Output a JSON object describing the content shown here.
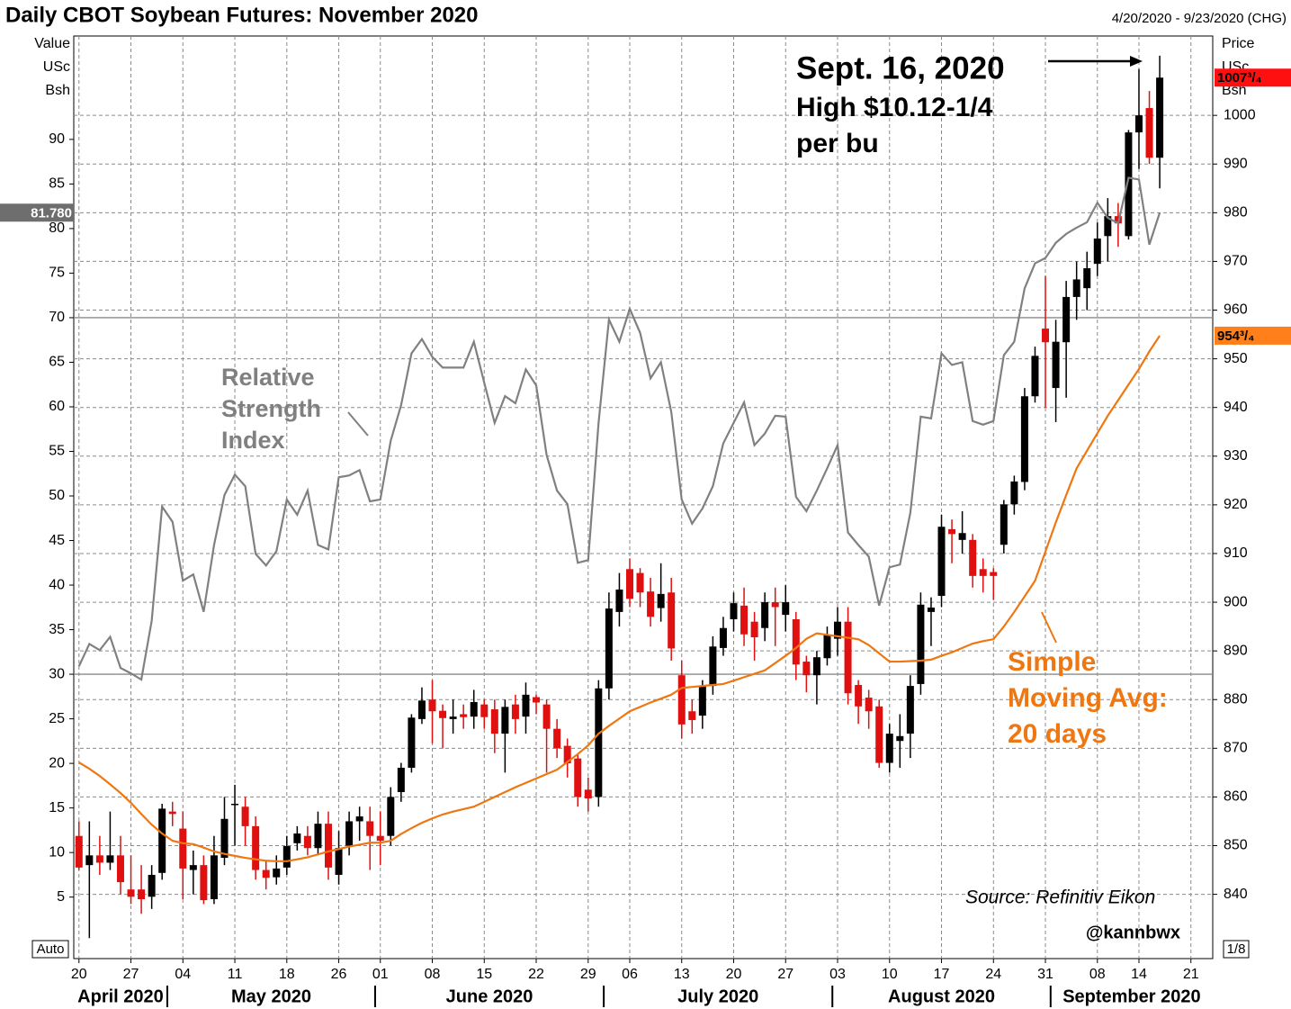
{
  "chart_data": {
    "type": "candlestick",
    "title": "Daily CBOT Soybean Futures: November 2020",
    "date_range": "4/20/2020 - 9/23/2020 (CHG)",
    "y_axis_label": [
      "Value",
      "USc",
      "Bsh"
    ],
    "y2_axis_label": [
      "Price",
      "USc",
      "Bsh"
    ],
    "xlim": [
      -0.5,
      109.1
    ],
    "xticks": [
      {
        "value": 0,
        "label": "20"
      },
      {
        "value": 5,
        "label": "27"
      },
      {
        "value": 10,
        "label": "04"
      },
      {
        "value": 15,
        "label": "11"
      },
      {
        "value": 20,
        "label": "18"
      },
      {
        "value": 25,
        "label": "26"
      },
      {
        "value": 29,
        "label": "01"
      },
      {
        "value": 34,
        "label": "08"
      },
      {
        "value": 39,
        "label": "15"
      },
      {
        "value": 44,
        "label": "22"
      },
      {
        "value": 49,
        "label": "29"
      },
      {
        "value": 53,
        "label": "06"
      },
      {
        "value": 58,
        "label": "13"
      },
      {
        "value": 63,
        "label": "20"
      },
      {
        "value": 68,
        "label": "27"
      },
      {
        "value": 73,
        "label": "03"
      },
      {
        "value": 78,
        "label": "10"
      },
      {
        "value": 83,
        "label": "17"
      },
      {
        "value": 88,
        "label": "24"
      },
      {
        "value": 93,
        "label": "31"
      },
      {
        "value": 98,
        "label": "08"
      },
      {
        "value": 102,
        "label": "14"
      },
      {
        "value": 107,
        "label": "21"
      }
    ],
    "months": [
      {
        "label": "April 2020",
        "start": 0
      },
      {
        "label": "May 2020",
        "start": 9
      },
      {
        "label": "June 2020",
        "start": 29
      },
      {
        "label": "July 2020",
        "start": 51
      },
      {
        "label": "August 2020",
        "start": 73
      },
      {
        "label": "September 2020",
        "start": 94
      }
    ],
    "ylim": [
      -1.9,
      101.6
    ],
    "yticks": [
      5,
      10,
      15,
      20,
      25,
      30,
      35,
      40,
      45,
      50,
      55,
      60,
      65,
      70,
      75,
      80,
      85,
      90
    ],
    "y2lim": [
      826.8,
      1016.3
    ],
    "y2ticks": [
      840,
      850,
      860,
      870,
      880,
      890,
      900,
      910,
      920,
      930,
      940,
      950,
      960,
      970,
      980,
      990,
      1000
    ],
    "grid": true,
    "reference_lines": [
      70,
      30
    ],
    "candles": {
      "up_color": "#000000",
      "down_color": "#e01010",
      "open": [
        852,
        846,
        848,
        846.5,
        848,
        841,
        841,
        839.5,
        844.4,
        857,
        853.5,
        845,
        846,
        839,
        847.5,
        858.5,
        858,
        854,
        845,
        843.5,
        845.5,
        850.5,
        852,
        849.5,
        854.5,
        844,
        850,
        855,
        855,
        852,
        852,
        861,
        866,
        876,
        880,
        877.7,
        876,
        877,
        876.5,
        879,
        878,
        873,
        879,
        876.5,
        880.5,
        879,
        874,
        870.5,
        867.9,
        861.5,
        860,
        882.3,
        898,
        906.8,
        906,
        902.2,
        898.8,
        902,
        885,
        877.6,
        876.7,
        882.8,
        890.6,
        896.5,
        899.3,
        896,
        894.7,
        900,
        897.4,
        896.5,
        887.8,
        885,
        888.5,
        892.5,
        896,
        883,
        880.4,
        878.6,
        867,
        871.5,
        873,
        883.2,
        898,
        901.3,
        915,
        912.8,
        912.8,
        906.8,
        906.2,
        911.8,
        920.1,
        924.7,
        942.3,
        956.2,
        944,
        953.4,
        962.7,
        964.5,
        969.5,
        975.2,
        979.3,
        975.2,
        996.5,
        1001.5,
        991.3
      ],
      "high": [
        855,
        855,
        852,
        857,
        852,
        848,
        846,
        846,
        858.6,
        859,
        857,
        849,
        848,
        852,
        860,
        862.5,
        860,
        856,
        847,
        848,
        852,
        854,
        854,
        857,
        857,
        853,
        857,
        858,
        858,
        857,
        862,
        867,
        877,
        882.5,
        884,
        879,
        880,
        879,
        882,
        880,
        880,
        880,
        881,
        883.5,
        881,
        880,
        876,
        872,
        869,
        864,
        884,
        902,
        906,
        909,
        907,
        905,
        908,
        905,
        888,
        880,
        884,
        893,
        897,
        902,
        903,
        898,
        902,
        903,
        903.5,
        898,
        889,
        890,
        895,
        899,
        899,
        884,
        882,
        880,
        875,
        877,
        885,
        902,
        901,
        918,
        917,
        918.7,
        914,
        909,
        907,
        921,
        926,
        944,
        952.5,
        967,
        958,
        966,
        970,
        972,
        978,
        983,
        982,
        997,
        1009.5,
        1005,
        1012.25
      ],
      "low": [
        845,
        831,
        844,
        845,
        840,
        838,
        836,
        837,
        843,
        854,
        839,
        840,
        838,
        838,
        846,
        850,
        850,
        843,
        841,
        842,
        844,
        849,
        848,
        848,
        843,
        842,
        848,
        851,
        845,
        846,
        850,
        859,
        865,
        875,
        871,
        870,
        873,
        874,
        874,
        874,
        869,
        865,
        873,
        873,
        877,
        865,
        868,
        864,
        858,
        857,
        858,
        880,
        895,
        899,
        899,
        895,
        896,
        888,
        872,
        873,
        874,
        881,
        889,
        894,
        891,
        888,
        892,
        891,
        894,
        884,
        881.5,
        879,
        887,
        889,
        879,
        875,
        874,
        866,
        865,
        866,
        868,
        881,
        891,
        899,
        908,
        910,
        903,
        902,
        900.5,
        910,
        918,
        923,
        941,
        940,
        937,
        942,
        958,
        960,
        967,
        970,
        973,
        974.5,
        989,
        990,
        985
      ],
      "close": [
        845.5,
        848,
        846.5,
        848,
        842.5,
        839.5,
        839,
        844,
        857.6,
        856.5,
        845.3,
        846,
        838.8,
        848,
        855.5,
        858.6,
        854,
        845,
        843.4,
        845.3,
        849.9,
        852.5,
        849.5,
        854.5,
        845.5,
        849.5,
        855,
        856,
        852,
        851,
        860,
        866,
        876.3,
        879.8,
        877.6,
        876.2,
        876.5,
        876.4,
        879.5,
        876.4,
        873,
        878.5,
        876,
        881,
        879.4,
        874,
        870,
        866.9,
        860,
        859.7,
        882.3,
        898.7,
        902.6,
        900.7,
        902,
        897,
        901.7,
        890.5,
        874.9,
        875.8,
        882.8,
        890.9,
        894.7,
        899.8,
        893.4,
        892.8,
        900,
        899,
        900,
        887.2,
        885,
        888.7,
        893.3,
        896,
        881.3,
        878.6,
        877.6,
        867,
        873,
        872.5,
        882.8,
        899.5,
        898.9,
        915.5,
        914,
        914.2,
        905.4,
        905.4,
        905.4,
        920.1,
        924.8,
        942.3,
        950.6,
        953.4,
        953.5,
        962.7,
        966.3,
        968.6,
        974.7,
        979.3,
        977.8,
        996.5,
        1000,
        991.3,
        1007.75
      ]
    },
    "series": [
      {
        "color": "#808080",
        "axis": "y",
        "values": [
          30.9,
          33.4,
          32.7,
          34.2,
          30.7,
          30.1,
          29.4,
          36,
          48.8,
          47.1,
          40.5,
          41.2,
          37,
          44.5,
          50.1,
          52.4,
          51.1,
          43.5,
          42.2,
          43.8,
          49.6,
          47.9,
          50.6,
          44.5,
          44,
          52.1,
          52.3,
          52.9,
          49.4,
          49.6,
          56.2,
          60.2,
          66,
          67.6,
          65.6,
          64.4,
          64.4,
          64.4,
          67.3,
          62.7,
          58.2,
          61.2,
          60.4,
          64.2,
          62.4,
          54.6,
          50.6,
          49.1,
          42.5,
          42.8,
          58.2,
          69.8,
          67.3,
          71,
          68.3,
          63.2,
          65,
          59.4,
          49.6,
          46.9,
          48.6,
          51.1,
          55.9,
          58.2,
          60.5,
          55.7,
          57,
          59,
          58.9,
          49.9,
          48.3,
          50.6,
          53.1,
          55.7,
          45.9,
          44.5,
          43.2,
          37.7,
          42,
          42.3,
          48.1,
          58.9,
          58.7,
          66,
          64.7,
          65,
          58.4,
          58,
          58.4,
          65.8,
          67.3,
          73.3,
          76.1,
          76.7,
          78.4,
          79.4,
          80.1,
          80.7,
          82.9,
          81.2,
          80.6,
          85.7,
          85.5,
          78.2,
          81.78
        ]
      },
      {
        "color": "#ee7711",
        "axis": "y2",
        "values": [
          867.1,
          865.8,
          864.3,
          862.6,
          860.8,
          858.8,
          856.5,
          854.3,
          852.5,
          851.0,
          850.5,
          850.3,
          849.6,
          848.8,
          848.3,
          847.9,
          847.5,
          847.2,
          846.9,
          846.8,
          846.8,
          847.2,
          847.6,
          848.2,
          848.8,
          849.3,
          849.8,
          850.2,
          850.6,
          850.6,
          851.0,
          852.4,
          853.6,
          854.7,
          855.6,
          856.4,
          857.0,
          857.5,
          858.0,
          859.0,
          860.0,
          861.0,
          862.0,
          862.9,
          863.8,
          864.7,
          865.6,
          867.2,
          868.8,
          870.6,
          873.0,
          874.6,
          876.1,
          877.6,
          878.5,
          879.4,
          880.2,
          881.0,
          882.4,
          882.6,
          882.8,
          883.0,
          883.2,
          883.9,
          884.6,
          885.3,
          886.0,
          887.5,
          889.0,
          890.6,
          892.5,
          893.6,
          893.3,
          893.0,
          892.7,
          892.4,
          891.2,
          889.5,
          887.8,
          887.8,
          887.9,
          888.0,
          888.2,
          889.0,
          889.7,
          890.6,
          891.5,
          892.0,
          892.4,
          895.0,
          898.0,
          901.2,
          904.4,
          910.4,
          916.4,
          922.0,
          927.5,
          931.1,
          934.7,
          938.3,
          941.5,
          944.7,
          947.9,
          951.5,
          954.75
        ]
      }
    ],
    "last_values": [
      {
        "axis": "y",
        "value": 81.78,
        "label": "81.780",
        "color": "#6e6e6e"
      },
      {
        "axis": "y2",
        "value": 1007.75,
        "label": "1007³/₄",
        "color": "#ff1010"
      },
      {
        "axis": "y2",
        "value": 954.75,
        "label": "954³/₄",
        "color": "#ff7f1a"
      }
    ],
    "annotations": {
      "high": [
        "Sept. 16, 2020",
        "High $10.12-1/4",
        "per bu"
      ],
      "rsi": [
        "Relative",
        "Strength",
        "Index"
      ],
      "sma": [
        "Simple",
        "Moving Avg:",
        "20 days"
      ],
      "source": "Source: Refinitiv Eikon",
      "handle": "@kannbwx"
    },
    "corner_labels": {
      "left": "Auto",
      "right": "1/8"
    }
  }
}
